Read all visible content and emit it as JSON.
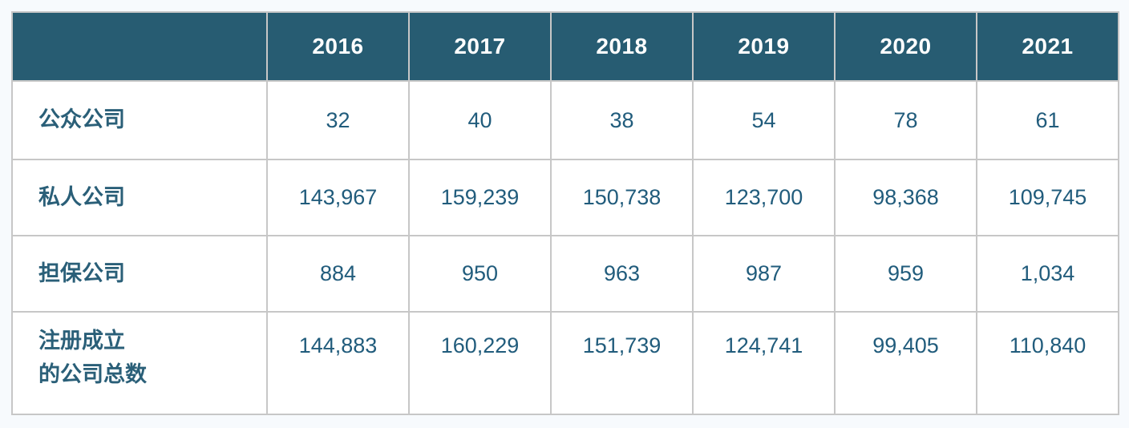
{
  "chart_data": {
    "type": "table",
    "title": "",
    "corner_label": "",
    "columns": [
      "2016",
      "2017",
      "2018",
      "2019",
      "2020",
      "2021"
    ],
    "rows": [
      {
        "label": "公众公司",
        "values": [
          "32",
          "40",
          "38",
          "54",
          "78",
          "61"
        ]
      },
      {
        "label": "私人公司",
        "values": [
          "143,967",
          "159,239",
          "150,738",
          "123,700",
          "98,368",
          "109,745"
        ]
      },
      {
        "label": "担保公司",
        "values": [
          "884",
          "950",
          "963",
          "987",
          "959",
          "1,034"
        ]
      },
      {
        "label": "注册成立\n的公司总数",
        "values": [
          "144,883",
          "160,229",
          "151,739",
          "124,741",
          "99,405",
          "110,840"
        ]
      }
    ],
    "numeric_series": [
      {
        "name": "公众公司",
        "values": [
          32,
          40,
          38,
          54,
          78,
          61
        ]
      },
      {
        "name": "私人公司",
        "values": [
          143967,
          159239,
          150738,
          123700,
          98368,
          109745
        ]
      },
      {
        "name": "担保公司",
        "values": [
          884,
          950,
          963,
          987,
          959,
          1034
        ]
      },
      {
        "name": "注册成立的公司总数",
        "values": [
          144883,
          160229,
          151739,
          124741,
          99405,
          110840
        ]
      }
    ],
    "layout": {
      "grid": true,
      "header_position": "top"
    }
  },
  "colors": {
    "header_background": "#275C72",
    "header_text": "#FFFFFF",
    "cell_text": "#215C7C",
    "label_text": "#2A5F78",
    "grid_border": "#C7C7C7",
    "page_background": "#F7FAFD",
    "cell_background": "#FFFFFF"
  }
}
